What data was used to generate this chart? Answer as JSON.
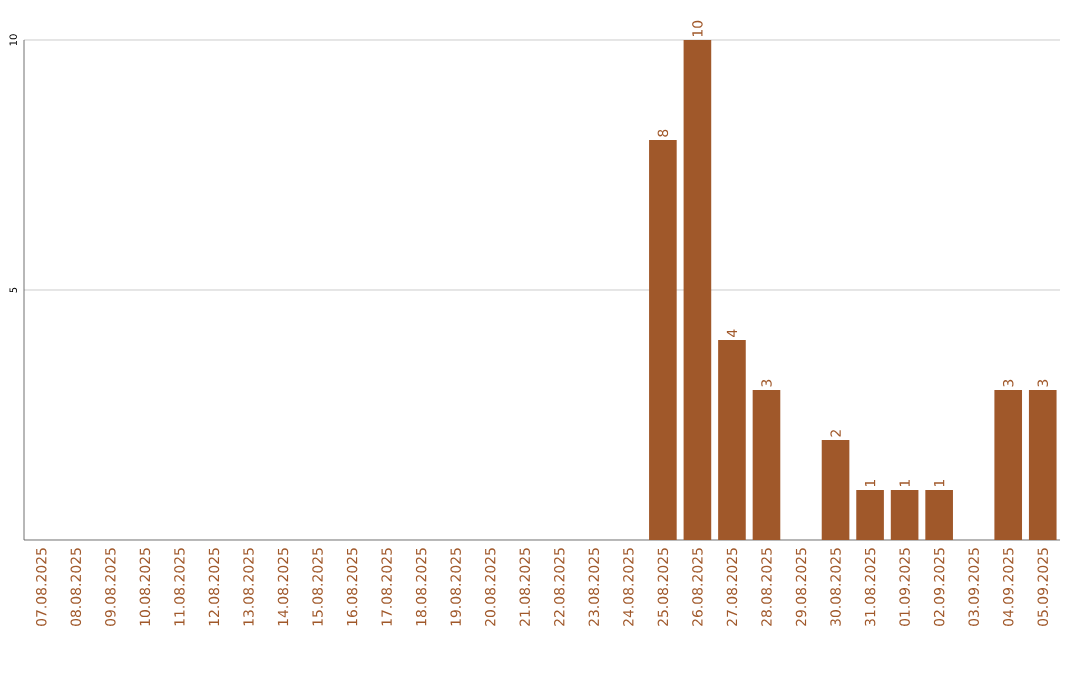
{
  "chart_data": {
    "type": "bar",
    "categories": [
      "07.08.2025",
      "08.08.2025",
      "09.08.2025",
      "10.08.2025",
      "11.08.2025",
      "12.08.2025",
      "13.08.2025",
      "14.08.2025",
      "15.08.2025",
      "16.08.2025",
      "17.08.2025",
      "18.08.2025",
      "19.08.2025",
      "20.08.2025",
      "21.08.2025",
      "22.08.2025",
      "23.08.2025",
      "24.08.2025",
      "25.08.2025",
      "26.08.2025",
      "27.08.2025",
      "28.08.2025",
      "29.08.2025",
      "30.08.2025",
      "31.08.2025",
      "01.09.2025",
      "02.09.2025",
      "03.09.2025",
      "04.09.2025",
      "05.09.2025"
    ],
    "values": [
      0,
      0,
      0,
      0,
      0,
      0,
      0,
      0,
      0,
      0,
      0,
      0,
      0,
      0,
      0,
      0,
      0,
      0,
      8,
      10,
      4,
      3,
      0,
      2,
      1,
      1,
      1,
      0,
      3,
      3
    ],
    "value_labels": [
      null,
      null,
      null,
      null,
      null,
      null,
      null,
      null,
      null,
      null,
      null,
      null,
      null,
      null,
      null,
      null,
      null,
      null,
      "8",
      "10",
      "4",
      "3",
      null,
      "2",
      "1",
      "1",
      "1",
      null,
      "3",
      "3"
    ],
    "color": "#a0582a",
    "ylim": [
      0,
      10
    ],
    "yticks": [
      5,
      10
    ],
    "grid": "y"
  }
}
